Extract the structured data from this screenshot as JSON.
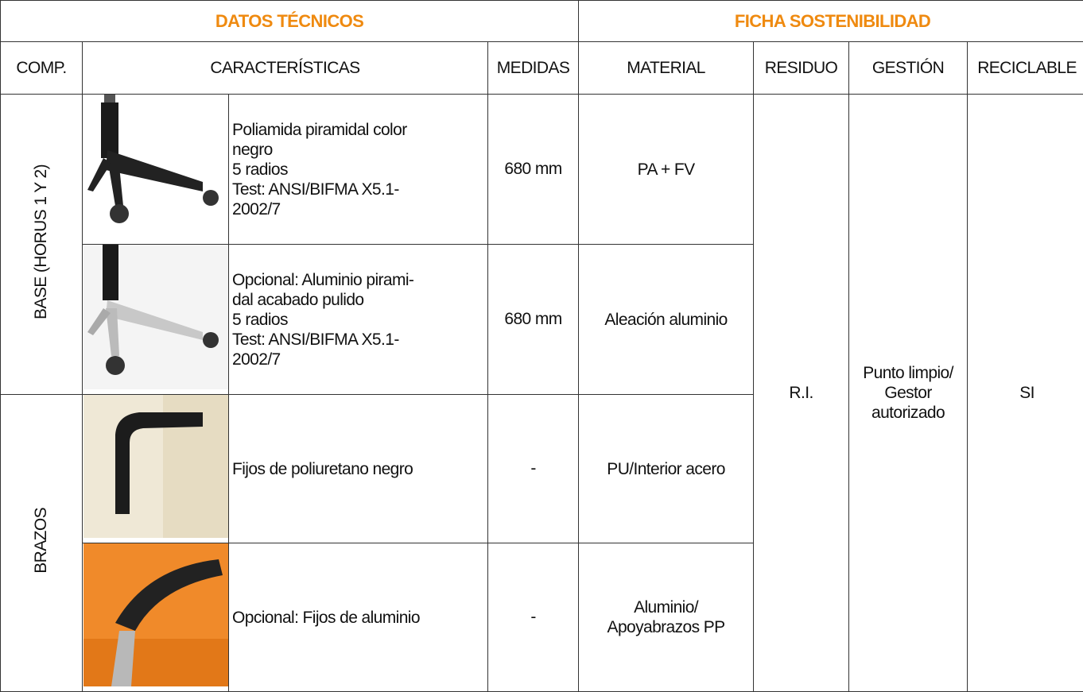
{
  "header": {
    "sections": [
      "DATOS TÉCNICOS",
      "FICHA SOSTENIBILIDAD"
    ],
    "columns": [
      "COMP.",
      "CARACTERÍSTICAS",
      "MEDIDAS",
      "MATERIAL",
      "RESIDUO",
      "GESTIÓN",
      "RECICLABLE"
    ]
  },
  "groups": [
    {
      "label": "BASE (HORUS 1 Y 2)",
      "items": [
        {
          "characteristics": [
            "Poliamida piramidal color",
            "negro",
            "5 radios",
            "Test: ANSI/BIFMA X5.1-",
            "2002/7"
          ],
          "medidas": "680 mm",
          "material": [
            "PA + FV"
          ]
        },
        {
          "characteristics": [
            "Opcional: Aluminio pirami-",
            "dal acabado pulido",
            "5 radios",
            "Test: ANSI/BIFMA X5.1-",
            "2002/7"
          ],
          "medidas": "680 mm",
          "material": [
            "Aleación aluminio"
          ]
        }
      ]
    },
    {
      "label": "BRAZOS",
      "items": [
        {
          "characteristics": [
            "Fijos de poliuretano negro"
          ],
          "medidas": "-",
          "material": [
            "PU/Interior acero"
          ]
        },
        {
          "characteristics": [
            "Opcional: Fijos de aluminio"
          ],
          "medidas": "-",
          "material": [
            "Aluminio/",
            "Apoyabrazos PP"
          ]
        }
      ]
    }
  ],
  "sustainability": {
    "residuo": "R.I.",
    "gestion": [
      "Punto limpio/",
      "Gestor",
      "autorizado"
    ],
    "reciclable": "SI"
  }
}
